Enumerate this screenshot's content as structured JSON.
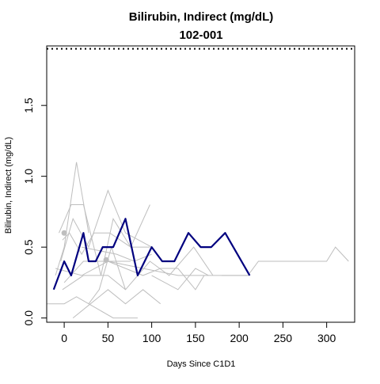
{
  "chart_data": {
    "type": "line",
    "title": "Bilirubin, Indirect (mg/dL)",
    "subtitle": "102-001",
    "xlabel": "Days Since C1D1",
    "ylabel": "Bilirubin, Indirect (mg/dL)",
    "xlim": [
      -20,
      332
    ],
    "ylim": [
      -0.03,
      1.92
    ],
    "x_ticks": [
      {
        "value": 0,
        "label": "0"
      },
      {
        "value": 50,
        "label": "50"
      },
      {
        "value": 100,
        "label": "100"
      },
      {
        "value": 150,
        "label": "150"
      },
      {
        "value": 200,
        "label": "200"
      },
      {
        "value": 250,
        "label": "250"
      },
      {
        "value": 300,
        "label": "300"
      }
    ],
    "y_ticks": [
      {
        "value": 0.0,
        "label": "0.0"
      },
      {
        "value": 0.5,
        "label": "0.5"
      },
      {
        "value": 1.0,
        "label": "1.0"
      },
      {
        "value": 1.5,
        "label": "1.5"
      }
    ],
    "reference_line": {
      "y": 1.9,
      "style": "dotted",
      "color": "#000000"
    },
    "colors": {
      "highlight": "#00007f",
      "background_series": "#bebebe"
    },
    "highlight_series": {
      "name": "102-001",
      "x": [
        -12,
        0,
        8,
        22,
        28,
        36,
        44,
        56,
        70,
        84,
        100,
        112,
        126,
        142,
        156,
        168,
        184,
        212
      ],
      "y": [
        0.2,
        0.4,
        0.3,
        0.6,
        0.4,
        0.4,
        0.5,
        0.5,
        0.7,
        0.3,
        0.5,
        0.4,
        0.4,
        0.6,
        0.5,
        0.5,
        0.6,
        0.3
      ]
    },
    "background_series": [
      {
        "x": [
          -20,
          0,
          14,
          28,
          56,
          84
        ],
        "y": [
          0.1,
          0.1,
          0.15,
          0.1,
          0.0,
          0.0
        ]
      },
      {
        "x": [
          -10,
          0,
          14,
          28
        ],
        "y": [
          0.3,
          0.5,
          1.1,
          0.6
        ]
      },
      {
        "x": [
          -6,
          8,
          22,
          42,
          56,
          76,
          98
        ],
        "y": [
          0.6,
          0.8,
          0.8,
          0.3,
          0.7,
          0.5,
          0.8
        ]
      },
      {
        "x": [
          -4,
          10,
          28,
          50,
          70,
          100
        ],
        "y": [
          0.4,
          0.7,
          0.5,
          0.9,
          0.6,
          0.5
        ]
      },
      {
        "x": [
          -2,
          6,
          20,
          34,
          52,
          76,
          98
        ],
        "y": [
          0.55,
          0.6,
          0.45,
          0.6,
          0.6,
          0.5,
          0.5
        ]
      },
      {
        "x": [
          -2,
          22,
          50,
          70,
          98,
          120,
          148,
          170
        ],
        "y": [
          0.2,
          0.3,
          0.3,
          0.2,
          0.4,
          0.3,
          0.5,
          0.3
        ]
      },
      {
        "x": [
          0,
          22,
          50,
          76
        ],
        "y": [
          0.25,
          0.4,
          0.4,
          0.4
        ]
      },
      {
        "x": [
          10,
          30,
          50,
          70,
          90,
          110
        ],
        "y": [
          0.0,
          0.1,
          0.2,
          0.1,
          0.2,
          0.1
        ]
      },
      {
        "x": [
          -10,
          20,
          50,
          90,
          130,
          170,
          210
        ],
        "y": [
          0.35,
          0.3,
          0.4,
          0.35,
          0.3,
          0.3,
          0.3
        ]
      },
      {
        "x": [
          50,
          70,
          90,
          110,
          130,
          150,
          160
        ],
        "y": [
          0.4,
          0.35,
          0.3,
          0.35,
          0.35,
          0.2,
          0.3
        ]
      },
      {
        "x": [
          100,
          130,
          150,
          165
        ],
        "y": [
          0.3,
          0.2,
          0.35,
          0.3
        ]
      },
      {
        "x": [
          180,
          210,
          222,
          260,
          300,
          310,
          325
        ],
        "y": [
          0.3,
          0.3,
          0.4,
          0.4,
          0.4,
          0.5,
          0.4
        ]
      },
      {
        "x": [
          20,
          60,
          80,
          100
        ],
        "y": [
          0.5,
          0.45,
          0.4,
          0.45
        ]
      },
      {
        "x": [
          28,
          40,
          54,
          70
        ],
        "y": [
          0.1,
          0.2,
          0.5,
          0.2
        ]
      }
    ],
    "points": [
      {
        "x": 0,
        "y": 0.6
      },
      {
        "x": 48,
        "y": 0.41
      }
    ],
    "grid": false,
    "legend": "none"
  }
}
